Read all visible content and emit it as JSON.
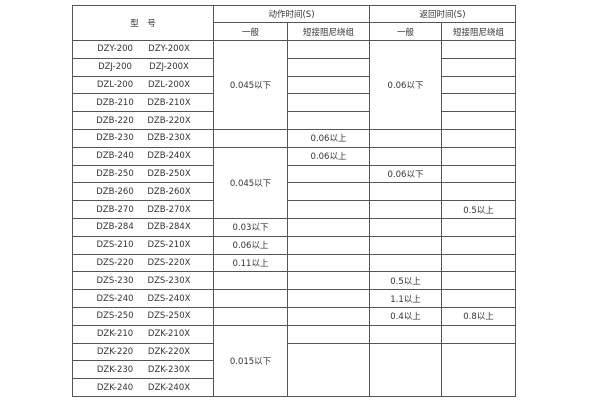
{
  "header": {
    "model": "型　号",
    "action_time": "动作时间(S)",
    "return_time": "返回时间(S)",
    "general": "一般",
    "short_circuit_damping": "短接阻尼绕组"
  },
  "rows": [
    {
      "model_a": "DZY-200",
      "model_b": "DZY-200X",
      "action_general": "0.045以下",
      "return_general": "0.06以下"
    },
    {
      "model_a": "DZJ-200",
      "model_b": "DZJ-200X"
    },
    {
      "model_a": "DZL-200",
      "model_b": "DZL-200X"
    },
    {
      "model_a": "DZB-210",
      "model_b": "DZB-210X"
    },
    {
      "model_a": "DZB-220",
      "model_b": "DZB-220X"
    },
    {
      "model_a": "DZB-230",
      "model_b": "DZB-230X",
      "action_short": "0.06以上"
    },
    {
      "model_a": "DZB-240",
      "model_b": "DZB-240X",
      "action_general": "0.045以下",
      "action_short": "0.06以上"
    },
    {
      "model_a": "DZB-250",
      "model_b": "DZB-250X",
      "return_general": "0.06以下"
    },
    {
      "model_a": "DZB-260",
      "model_b": "DZB-260X"
    },
    {
      "model_a": "DZB-270",
      "model_b": "DZB-270X",
      "return_short": "0.5以上"
    },
    {
      "model_a": "DZB-284",
      "model_b": "DZB-284X",
      "action_general": "0.03以下"
    },
    {
      "model_a": "DZS-210",
      "model_b": "DZS-210X",
      "action_general": "0.06以上"
    },
    {
      "model_a": "DZS-220",
      "model_b": "DZS-220X",
      "action_general": "0.11以上"
    },
    {
      "model_a": "DZS-230",
      "model_b": "DZS-230X",
      "return_general": "0.5以上"
    },
    {
      "model_a": "DZS-240",
      "model_b": "DZS-240X",
      "return_general": "1.1以上"
    },
    {
      "model_a": "DZS-250",
      "model_b": "DZS-250X",
      "return_general": "0.4以上",
      "return_short": "0.8以上"
    },
    {
      "model_a": "DZK-210",
      "model_b": "DZK-210X",
      "action_general": "0.015以下"
    },
    {
      "model_a": "DZK-220",
      "model_b": "DZK-220X"
    },
    {
      "model_a": "DZK-230",
      "model_b": "DZK-230X"
    },
    {
      "model_a": "DZK-240",
      "model_b": "DZK-240X"
    }
  ]
}
